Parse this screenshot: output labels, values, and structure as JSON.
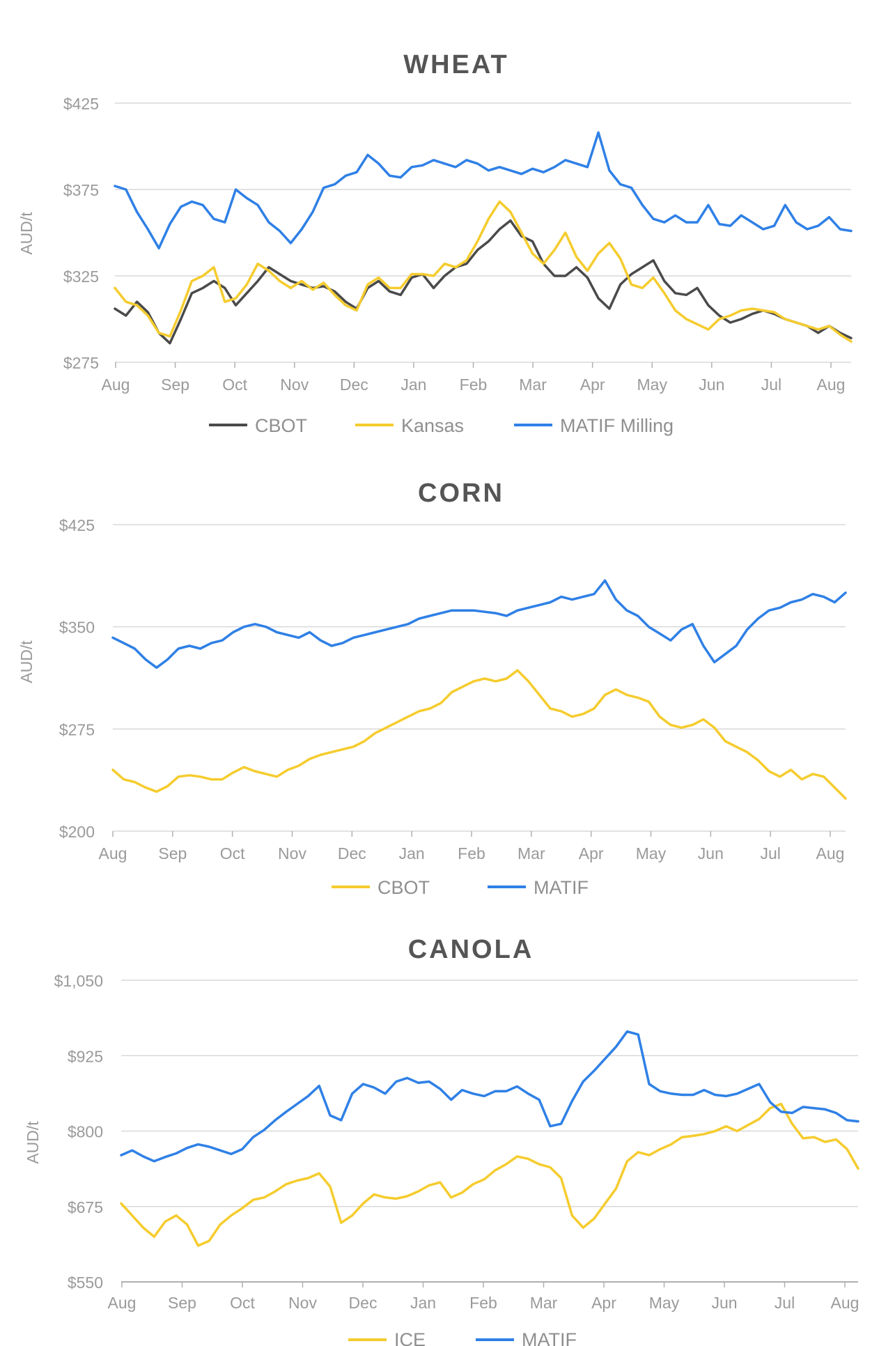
{
  "chart_data": [
    {
      "type": "line",
      "title": "WHEAT",
      "ylabel": "AUD/t",
      "ylim": [
        275,
        425
      ],
      "y_ticks": [
        "$275",
        "$325",
        "$375",
        "$425"
      ],
      "x_ticks": [
        "Aug",
        "Sep",
        "Oct",
        "Nov",
        "Dec",
        "Jan",
        "Feb",
        "Mar",
        "Apr",
        "May",
        "Jun",
        "Jul",
        "Aug"
      ],
      "grid": true,
      "legend_position": "bottom",
      "series": [
        {
          "name": "CBOT",
          "color": "#4a4a4a",
          "values": [
            306,
            302,
            310,
            304,
            292,
            286,
            300,
            315,
            318,
            322,
            318,
            308,
            315,
            322,
            330,
            326,
            322,
            320,
            318,
            319,
            316,
            310,
            306,
            318,
            322,
            316,
            314,
            324,
            326,
            318,
            325,
            330,
            332,
            340,
            345,
            352,
            357,
            348,
            345,
            332,
            325,
            325,
            330,
            324,
            312,
            306,
            320,
            326,
            330,
            334,
            322,
            315,
            314,
            318,
            308,
            302,
            298,
            300,
            303,
            305,
            303,
            300,
            298,
            296,
            292,
            296,
            292,
            289
          ]
        },
        {
          "name": "Kansas",
          "color": "#f5cc2e",
          "values": [
            318,
            310,
            308,
            302,
            292,
            290,
            305,
            322,
            325,
            330,
            310,
            312,
            320,
            332,
            328,
            322,
            318,
            322,
            317,
            321,
            314,
            308,
            305,
            320,
            324,
            318,
            318,
            326,
            326,
            325,
            332,
            330,
            334,
            345,
            358,
            368,
            362,
            350,
            338,
            332,
            340,
            350,
            336,
            328,
            338,
            344,
            335,
            320,
            318,
            324,
            315,
            305,
            300,
            297,
            294,
            300,
            302,
            305,
            306,
            305,
            304,
            300,
            298,
            296,
            294,
            296,
            291,
            287
          ]
        },
        {
          "name": "MATIF Milling",
          "color": "#2f80e6",
          "values": [
            377,
            375,
            362,
            352,
            341,
            355,
            365,
            368,
            366,
            358,
            356,
            375,
            370,
            366,
            356,
            351,
            344,
            352,
            362,
            376,
            378,
            383,
            385,
            395,
            390,
            383,
            382,
            388,
            389,
            392,
            390,
            388,
            392,
            390,
            386,
            388,
            386,
            384,
            387,
            385,
            388,
            392,
            390,
            388,
            408,
            386,
            378,
            376,
            366,
            358,
            356,
            360,
            356,
            356,
            366,
            355,
            354,
            360,
            356,
            352,
            354,
            366,
            356,
            352,
            354,
            359,
            352,
            351
          ]
        }
      ]
    },
    {
      "type": "line",
      "title": "CORN",
      "ylabel": "AUD/t",
      "ylim": [
        200,
        425
      ],
      "y_ticks": [
        "$200",
        "$275",
        "$350",
        "$425"
      ],
      "x_ticks": [
        "Aug",
        "Sep",
        "Oct",
        "Nov",
        "Dec",
        "Jan",
        "Feb",
        "Mar",
        "Apr",
        "May",
        "Jun",
        "Jul",
        "Aug"
      ],
      "grid": true,
      "legend_position": "bottom",
      "series": [
        {
          "name": "CBOT",
          "color": "#f5cc2e",
          "values": [
            245,
            238,
            236,
            232,
            229,
            233,
            240,
            241,
            240,
            238,
            238,
            243,
            247,
            244,
            242,
            240,
            245,
            248,
            253,
            256,
            258,
            260,
            262,
            266,
            272,
            276,
            280,
            284,
            288,
            290,
            294,
            302,
            306,
            310,
            312,
            310,
            312,
            318,
            310,
            300,
            290,
            288,
            284,
            286,
            290,
            300,
            304,
            300,
            298,
            295,
            284,
            278,
            276,
            278,
            282,
            276,
            266,
            262,
            258,
            252,
            244,
            240,
            245,
            238,
            242,
            240,
            232,
            224
          ]
        },
        {
          "name": "MATIF",
          "color": "#2f80e6",
          "values": [
            342,
            338,
            334,
            326,
            320,
            326,
            334,
            336,
            334,
            338,
            340,
            346,
            350,
            352,
            350,
            346,
            344,
            342,
            346,
            340,
            336,
            338,
            342,
            344,
            346,
            348,
            350,
            352,
            356,
            358,
            360,
            362,
            362,
            362,
            361,
            360,
            358,
            362,
            364,
            366,
            368,
            372,
            370,
            372,
            374,
            384,
            370,
            362,
            358,
            350,
            345,
            340,
            348,
            352,
            336,
            324,
            330,
            336,
            348,
            356,
            362,
            364,
            368,
            370,
            374,
            372,
            368,
            375
          ]
        }
      ]
    },
    {
      "type": "line",
      "title": "CANOLA",
      "ylabel": "AUD/t",
      "ylim": [
        550,
        1050
      ],
      "y_ticks": [
        "$550",
        "$675",
        "$800",
        "$925",
        "$1,050"
      ],
      "x_ticks": [
        "Aug",
        "Sep",
        "Oct",
        "Nov",
        "Dec",
        "Jan",
        "Feb",
        "Mar",
        "Apr",
        "May",
        "Jun",
        "Jul",
        "Aug"
      ],
      "grid": true,
      "legend_position": "bottom",
      "series": [
        {
          "name": "ICE",
          "color": "#f5cc2e",
          "values": [
            680,
            660,
            640,
            625,
            650,
            660,
            645,
            610,
            618,
            645,
            660,
            672,
            686,
            690,
            700,
            712,
            718,
            722,
            730,
            708,
            648,
            660,
            680,
            695,
            690,
            688,
            692,
            700,
            710,
            715,
            690,
            698,
            712,
            720,
            735,
            745,
            758,
            754,
            745,
            740,
            722,
            660,
            640,
            655,
            680,
            705,
            750,
            765,
            760,
            770,
            778,
            790,
            792,
            795,
            800,
            808,
            800,
            810,
            820,
            838,
            845,
            812,
            788,
            790,
            782,
            786,
            770,
            738
          ]
        },
        {
          "name": "MATIF",
          "color": "#2f80e6",
          "values": [
            760,
            768,
            758,
            750,
            757,
            763,
            772,
            778,
            774,
            768,
            762,
            770,
            790,
            802,
            818,
            832,
            845,
            858,
            875,
            826,
            818,
            862,
            878,
            872,
            862,
            882,
            888,
            880,
            882,
            870,
            852,
            868,
            862,
            858,
            866,
            866,
            874,
            862,
            852,
            808,
            812,
            850,
            882,
            900,
            920,
            940,
            965,
            960,
            878,
            866,
            862,
            860,
            860,
            868,
            860,
            858,
            862,
            870,
            878,
            848,
            832,
            830,
            840,
            838,
            836,
            830,
            818,
            816
          ]
        }
      ]
    }
  ],
  "charts": [
    {
      "title": "WHEAT",
      "ylabel": "AUD/t",
      "legend": [
        "CBOT",
        "Kansas",
        "MATIF Milling"
      ]
    },
    {
      "title": "CORN",
      "ylabel": "AUD/t",
      "legend": [
        "CBOT",
        "MATIF"
      ]
    },
    {
      "title": "CANOLA",
      "ylabel": "AUD/t",
      "legend": [
        "ICE",
        "MATIF"
      ]
    }
  ]
}
